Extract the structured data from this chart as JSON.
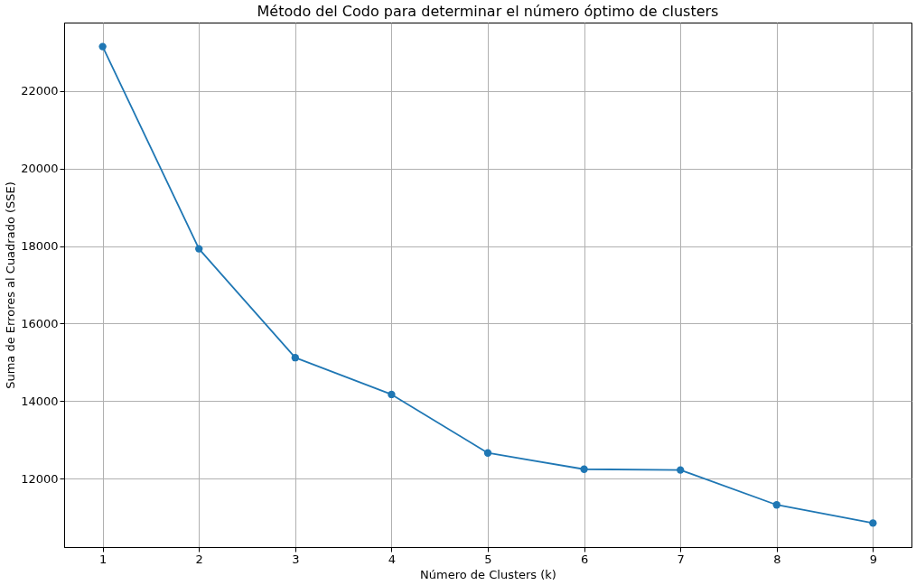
{
  "chart_data": {
    "type": "line",
    "title": "Método del Codo para determinar el número óptimo de clusters",
    "xlabel": "Número de Clusters (k)",
    "ylabel": "Suma de Errores al Cuadrado (SSE)",
    "x": [
      1,
      2,
      3,
      4,
      5,
      6,
      7,
      8,
      9
    ],
    "series": [
      {
        "color": "#1f77b4",
        "values": [
          23150,
          17930,
          15120,
          14170,
          12660,
          12240,
          12220,
          11320,
          10850
        ]
      }
    ],
    "xlim": [
      0.6,
      9.4
    ],
    "xticks": [
      1,
      2,
      3,
      4,
      5,
      6,
      7,
      8,
      9
    ],
    "ylim": [
      10230,
      23770
    ],
    "yticks": [
      12000,
      14000,
      16000,
      18000,
      20000,
      22000
    ],
    "grid": true,
    "marker": "circle",
    "line_style": "solid"
  }
}
